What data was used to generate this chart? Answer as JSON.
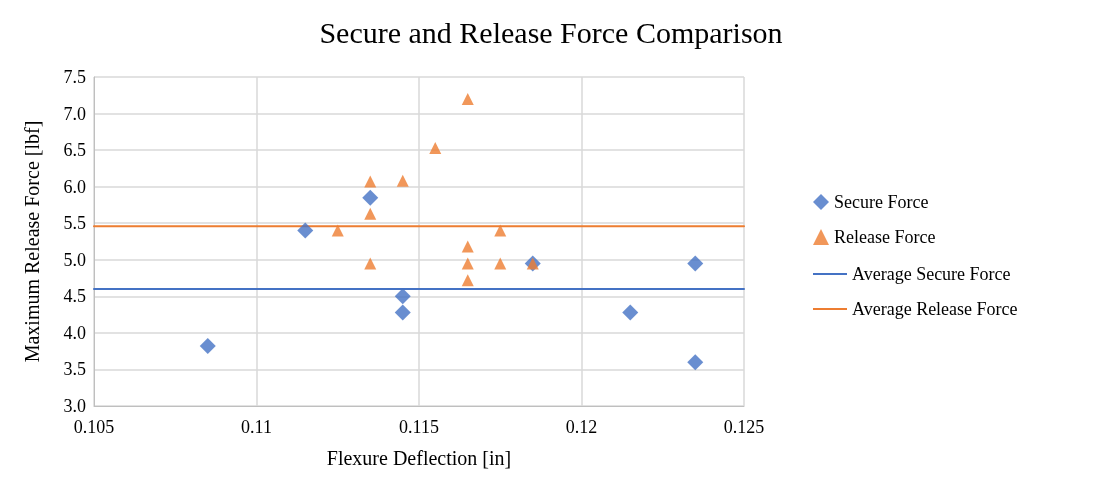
{
  "chart_data": {
    "type": "scatter",
    "title": "Secure and Release Force Comparison",
    "xlabel": "Flexure Deflection [in]",
    "ylabel": "Maximum Release Force [lbf]",
    "xlim": [
      0.105,
      0.125
    ],
    "xticks": [
      0.105,
      0.11,
      0.115,
      0.12,
      0.125
    ],
    "ylim": [
      3.0,
      7.5
    ],
    "yticks": [
      {
        "value": 3,
        "label": "3.0"
      },
      3.5,
      {
        "value": 4,
        "label": "4.0"
      },
      4.5,
      {
        "value": 5,
        "label": "5.0"
      },
      5.5,
      {
        "value": 6,
        "label": "6.0"
      },
      6.5,
      {
        "value": 7,
        "label": "7.0"
      },
      7.5
    ],
    "grid": true,
    "legend": "right",
    "series": [
      {
        "name": "Secure Force",
        "marker": "diamond",
        "color": "#4472c4",
        "x": [
          0.1085,
          0.1115,
          0.1135,
          0.1145,
          0.1145,
          0.1185,
          0.1215,
          0.1235,
          0.1235
        ],
        "values": [
          3.82,
          5.4,
          5.85,
          4.5,
          4.28,
          4.95,
          4.28,
          4.95,
          3.6
        ]
      },
      {
        "name": "Release Force",
        "marker": "triangle",
        "color": "#ed7d31",
        "x": [
          0.1125,
          0.1135,
          0.1135,
          0.1135,
          0.1145,
          0.1155,
          0.1165,
          0.1165,
          0.1165,
          0.1165,
          0.1175,
          0.1175,
          0.1185
        ],
        "values": [
          5.4,
          6.07,
          5.63,
          4.95,
          6.08,
          6.53,
          7.2,
          5.18,
          4.95,
          4.72,
          5.4,
          4.95,
          4.95
        ]
      },
      {
        "name": "Average Secure Force",
        "type": "line",
        "marker": "none",
        "line_style": "solid",
        "color": "#4472c4",
        "x": [
          0.105,
          0.125
        ],
        "values": [
          4.6,
          4.6
        ]
      },
      {
        "name": "Average Release Force",
        "type": "line",
        "marker": "none",
        "line_style": "solid",
        "color": "#ed7d31",
        "x": [
          0.105,
          0.125
        ],
        "values": [
          5.46,
          5.46
        ]
      }
    ]
  }
}
